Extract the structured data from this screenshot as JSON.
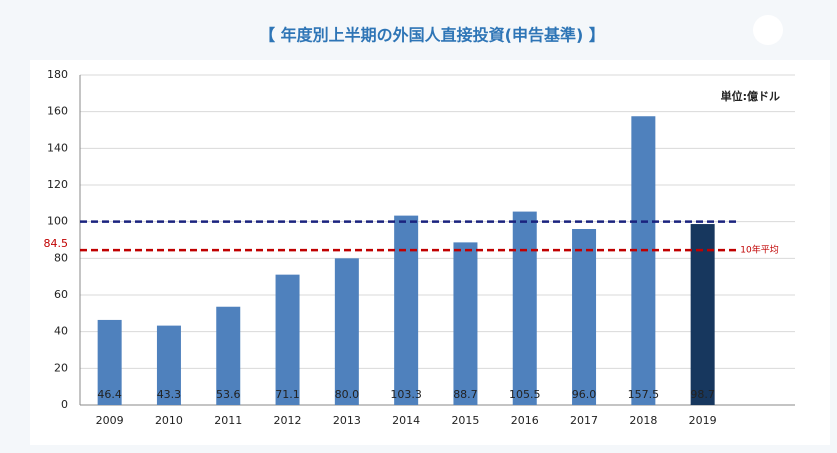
{
  "chart_data": {
    "type": "bar",
    "title": "【 年度別上半期の外国人直接投資(申告基準) 】",
    "unit": "単位:億ドル",
    "categories": [
      "2009",
      "2010",
      "2011",
      "2012",
      "2013",
      "2014",
      "2015",
      "2016",
      "2017",
      "2018",
      "2019"
    ],
    "values": [
      46.4,
      43.3,
      53.6,
      71.1,
      80,
      103.3,
      88.7,
      105.5,
      96,
      157.5,
      98.7
    ],
    "value_labels": [
      "46.4",
      "43.3",
      "53.6",
      "71.1",
      "80.0",
      "103.3",
      "88.7",
      "105.5",
      "96.0",
      "157.5",
      "98.7"
    ],
    "colors": [
      "#4f81bd",
      "#4f81bd",
      "#4f81bd",
      "#4f81bd",
      "#4f81bd",
      "#4f81bd",
      "#4f81bd",
      "#4f81bd",
      "#4f81bd",
      "#4f81bd",
      "#17375e"
    ],
    "ylim": [
      0,
      180
    ],
    "yticks": [
      0,
      20,
      40,
      60,
      80,
      100,
      120,
      140,
      160,
      180
    ],
    "grid": true,
    "reference_lines": [
      {
        "value": 100,
        "color": "#1a237e"
      },
      {
        "value": 84.5,
        "label": "84.5",
        "note": "10年平均",
        "color": "#c00000"
      }
    ]
  }
}
